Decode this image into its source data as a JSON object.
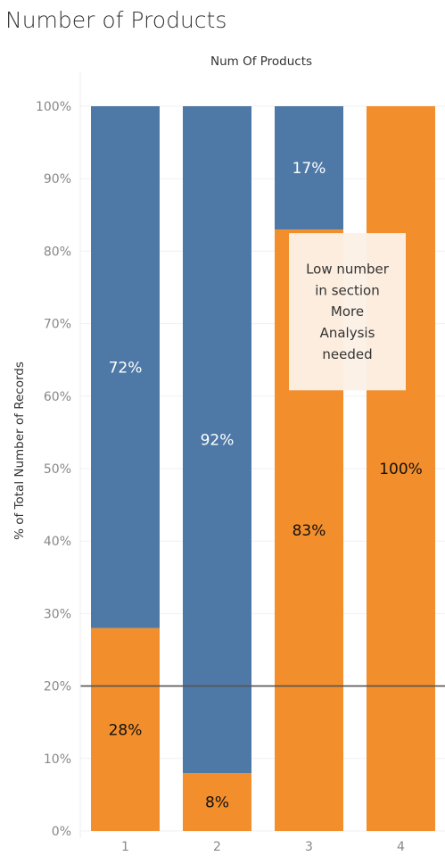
{
  "title": "Number of Products",
  "chart_data": {
    "type": "bar",
    "stacked": true,
    "normalized": true,
    "title": "Number of Products",
    "xlabel": "Num Of Products",
    "xlabel_position": "top",
    "ylabel": "% of Total Number of Records",
    "categories": [
      "1",
      "2",
      "3",
      "4"
    ],
    "ylim": [
      0,
      100
    ],
    "yticks": [
      0,
      10,
      20,
      30,
      40,
      50,
      60,
      70,
      80,
      90,
      100
    ],
    "ytick_labels": [
      "0%",
      "10%",
      "20%",
      "30%",
      "40%",
      "50%",
      "60%",
      "70%",
      "80%",
      "90%",
      "100%"
    ],
    "grid": true,
    "series": [
      {
        "color": "#f28e2b",
        "label_color": "#111111",
        "values": [
          28,
          8,
          83,
          100
        ],
        "labels": [
          "28%",
          "8%",
          "83%",
          "100%"
        ]
      },
      {
        "color": "#4e79a7",
        "label_color": "#ffffff",
        "values": [
          72,
          92,
          17,
          0
        ],
        "labels": [
          "72%",
          "92%",
          "17%",
          ""
        ]
      }
    ],
    "reference_line": {
      "value": 20,
      "color": "#555555"
    },
    "annotation": {
      "lines": [
        "Low number",
        "in section",
        "More",
        "Analysis",
        "needed"
      ],
      "category": "3",
      "y_range": [
        60.8,
        82.5
      ],
      "fill": "#fcf0e6"
    }
  }
}
